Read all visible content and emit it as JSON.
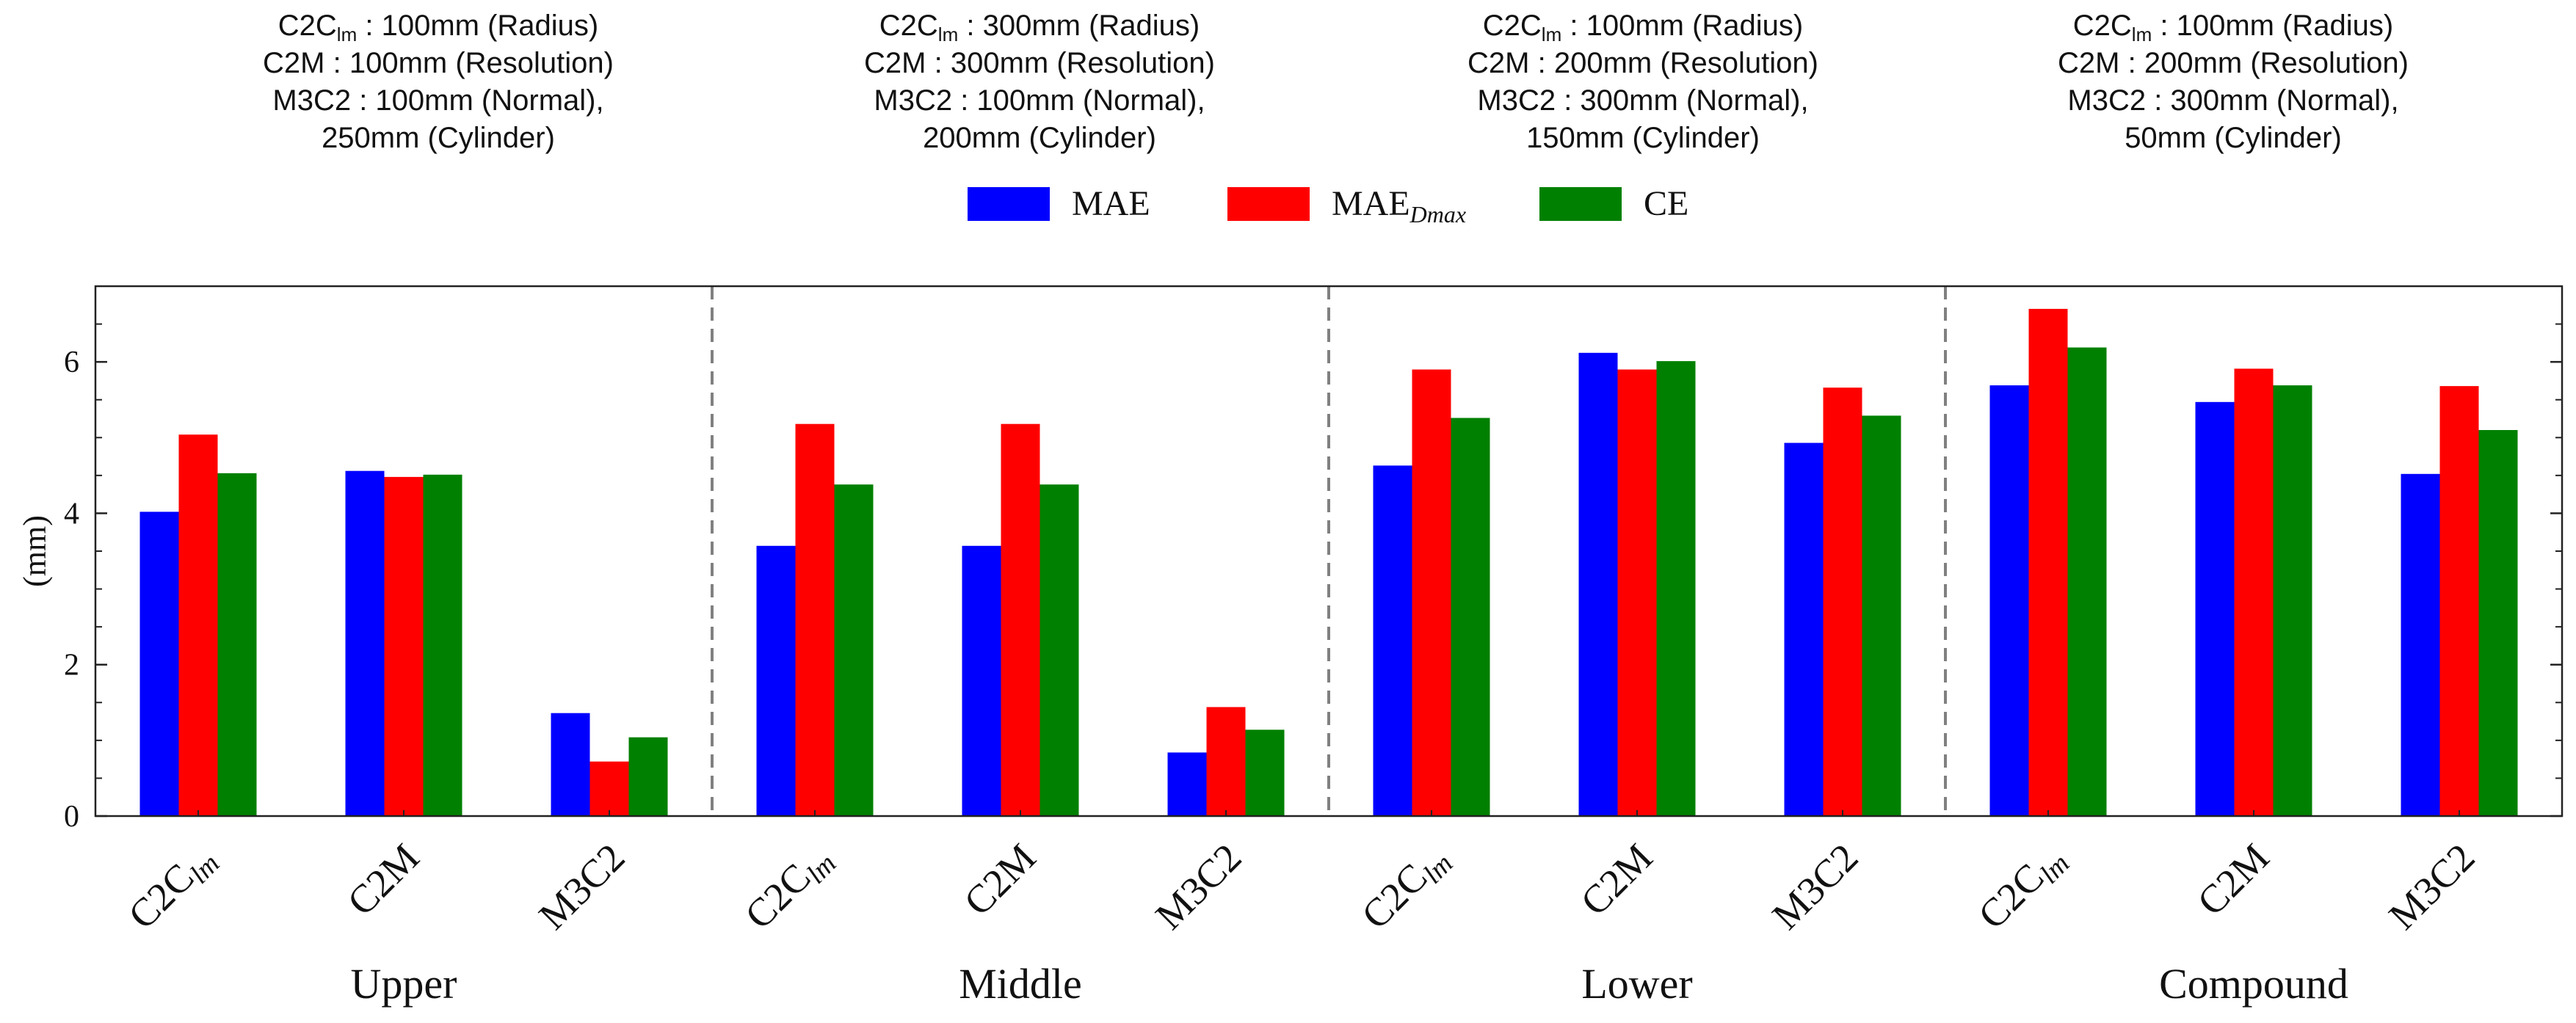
{
  "chart_data": {
    "type": "bar",
    "ylabel": "(mm)",
    "ylim": [
      0,
      7
    ],
    "yticks": [
      "0",
      "2",
      "4",
      "6"
    ],
    "grid": false,
    "legend_position": "top-center",
    "colors": {
      "MAE": "#0000ff",
      "MAE_Dmax": "#ff0000",
      "CE": "#008000"
    },
    "series": [
      {
        "name": "MAE",
        "name_parts": [
          "MAE",
          ""
        ]
      },
      {
        "name": "MAE_Dmax",
        "name_parts": [
          "MAE",
          "Dmax"
        ]
      },
      {
        "name": "CE",
        "name_parts": [
          "CE",
          ""
        ]
      }
    ],
    "groups": [
      {
        "name": "Upper",
        "annotation": [
          {
            "main": "C2C",
            "sub": "lm",
            "rest": " : 100mm (Radius)"
          },
          {
            "main": "C2M : 100mm (Resolution)",
            "sub": "",
            "rest": ""
          },
          {
            "main": "M3C2 : 100mm (Normal),",
            "sub": "",
            "rest": ""
          },
          {
            "main": "250mm (Cylinder)",
            "sub": "",
            "rest": ""
          }
        ],
        "categories": [
          {
            "label": "C2C",
            "sub": "lm",
            "values": [
              4.02,
              5.04,
              4.53
            ]
          },
          {
            "label": "C2M",
            "sub": "",
            "values": [
              4.56,
              4.48,
              4.51
            ]
          },
          {
            "label": "M3C2",
            "sub": "",
            "values": [
              1.36,
              0.72,
              1.04
            ]
          }
        ]
      },
      {
        "name": "Middle",
        "annotation": [
          {
            "main": "C2C",
            "sub": "lm",
            "rest": " : 300mm (Radius)"
          },
          {
            "main": "C2M : 300mm (Resolution)",
            "sub": "",
            "rest": ""
          },
          {
            "main": "M3C2 : 100mm (Normal),",
            "sub": "",
            "rest": ""
          },
          {
            "main": "200mm (Cylinder)",
            "sub": "",
            "rest": ""
          }
        ],
        "categories": [
          {
            "label": "C2C",
            "sub": "lm",
            "values": [
              3.57,
              5.18,
              4.38
            ]
          },
          {
            "label": "C2M",
            "sub": "",
            "values": [
              3.57,
              5.18,
              4.38
            ]
          },
          {
            "label": "M3C2",
            "sub": "",
            "values": [
              0.84,
              1.44,
              1.14
            ]
          }
        ]
      },
      {
        "name": "Lower",
        "annotation": [
          {
            "main": "C2C",
            "sub": "lm",
            "rest": " : 100mm (Radius)"
          },
          {
            "main": "C2M : 200mm (Resolution)",
            "sub": "",
            "rest": ""
          },
          {
            "main": "M3C2 : 300mm (Normal),",
            "sub": "",
            "rest": ""
          },
          {
            "main": "150mm (Cylinder)",
            "sub": "",
            "rest": ""
          }
        ],
        "categories": [
          {
            "label": "C2C",
            "sub": "lm",
            "values": [
              4.63,
              5.9,
              5.26
            ]
          },
          {
            "label": "C2M",
            "sub": "",
            "values": [
              6.12,
              5.9,
              6.01
            ]
          },
          {
            "label": "M3C2",
            "sub": "",
            "values": [
              4.93,
              5.66,
              5.29
            ]
          }
        ]
      },
      {
        "name": "Compound",
        "annotation": [
          {
            "main": "C2C",
            "sub": "lm",
            "rest": " : 100mm (Radius)"
          },
          {
            "main": "C2M : 200mm (Resolution)",
            "sub": "",
            "rest": ""
          },
          {
            "main": "M3C2 : 300mm (Normal),",
            "sub": "",
            "rest": ""
          },
          {
            "main": "50mm (Cylinder)",
            "sub": "",
            "rest": ""
          }
        ],
        "categories": [
          {
            "label": "C2C",
            "sub": "lm",
            "values": [
              5.69,
              6.7,
              6.19
            ]
          },
          {
            "label": "C2M",
            "sub": "",
            "values": [
              5.47,
              5.91,
              5.69
            ]
          },
          {
            "label": "M3C2",
            "sub": "",
            "values": [
              4.52,
              5.68,
              5.1
            ]
          }
        ]
      }
    ]
  }
}
